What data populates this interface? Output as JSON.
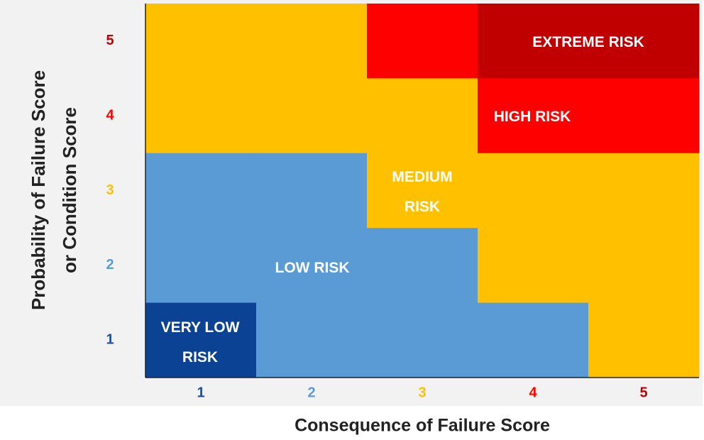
{
  "y_axis": {
    "title_lines": [
      "Probability of Failure Score",
      "or Condition Score"
    ],
    "labels": [
      "5",
      "4",
      "3",
      "2",
      "1"
    ],
    "label_colors": [
      "#c00000",
      "#ff0000",
      "#ffc000",
      "#5b9bd5",
      "#1f4e9b"
    ]
  },
  "x_axis": {
    "title": "Consequence of Failure Score",
    "labels": [
      "1",
      "2",
      "3",
      "4",
      "5"
    ],
    "label_colors": [
      "#1f4e9b",
      "#5b9bd5",
      "#ffc000",
      "#ff0000",
      "#c00000"
    ]
  },
  "grid": [
    [
      "#ffc000",
      "#ffc000",
      "#ff0000",
      "#c00000",
      "#c00000"
    ],
    [
      "#ffc000",
      "#ffc000",
      "#ffc000",
      "#ff0000",
      "#ff0000"
    ],
    [
      "#5b9bd5",
      "#5b9bd5",
      "#ffc000",
      "#ffc000",
      "#ffc000"
    ],
    [
      "#5b9bd5",
      "#5b9bd5",
      "#5b9bd5",
      "#ffc000",
      "#ffc000"
    ],
    [
      "#0b4293",
      "#5b9bd5",
      "#5b9bd5",
      "#5b9bd5",
      "#ffc000"
    ]
  ],
  "regions": [
    {
      "lines": [
        "EXTREME RISK"
      ]
    },
    {
      "lines": [
        "HIGH RISK"
      ]
    },
    {
      "lines": [
        "MEDIUM",
        "RISK"
      ]
    },
    {
      "lines": [
        "LOW RISK"
      ]
    },
    {
      "lines": [
        "VERY LOW",
        "RISK"
      ]
    }
  ]
}
